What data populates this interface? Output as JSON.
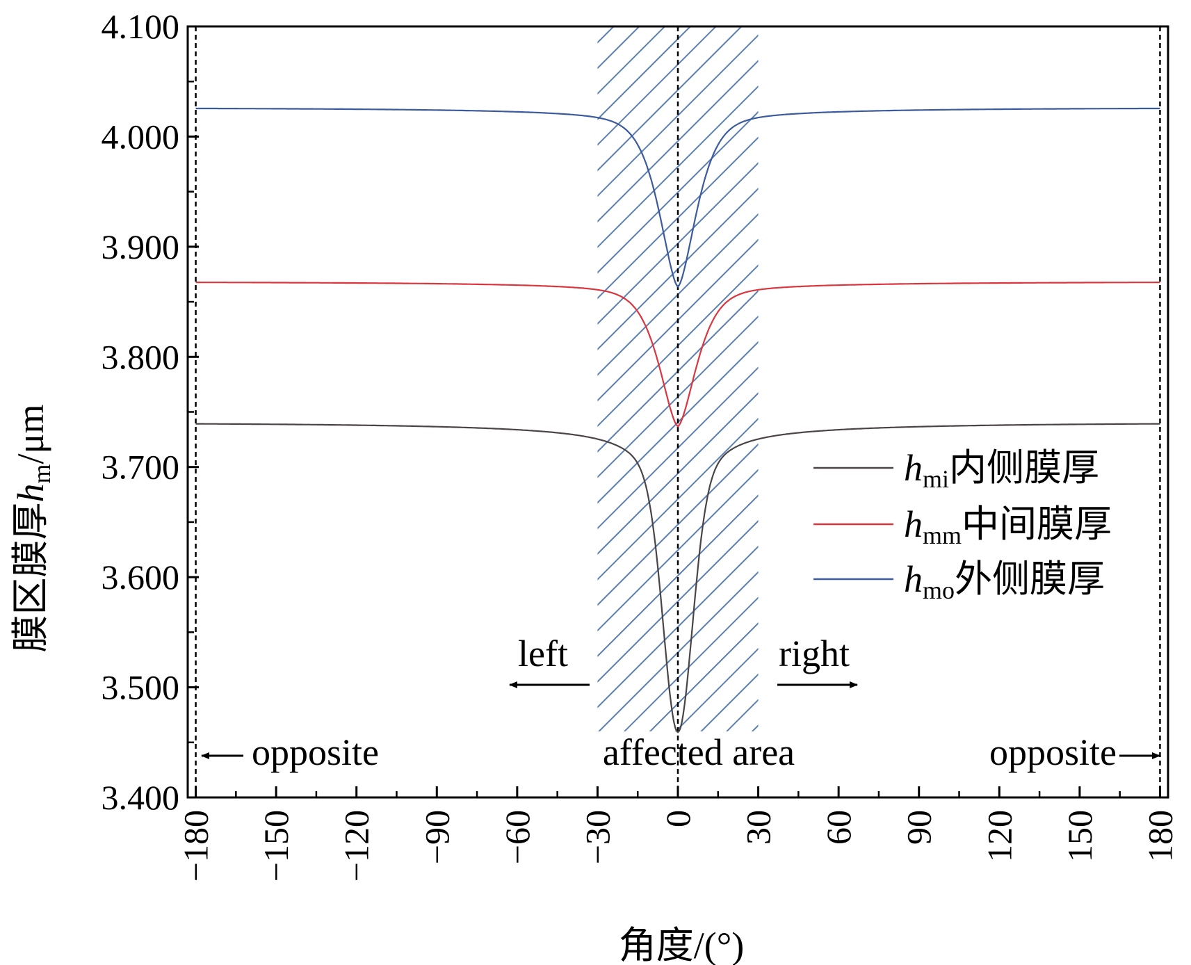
{
  "chart_data": {
    "type": "line",
    "xlabel": "角度/(°)",
    "ylabel": {
      "prefix": "膜区膜厚",
      "var": "h",
      "sub": "m",
      "unit": "/μm"
    },
    "xlim": [
      -183,
      183
    ],
    "ylim": [
      3.4,
      4.1
    ],
    "xticks": [
      -180,
      -150,
      -120,
      -90,
      -60,
      -30,
      0,
      30,
      60,
      90,
      120,
      150,
      180
    ],
    "xtick_labels": [
      "−180",
      "−150",
      "−120",
      "−90",
      "−60",
      "−30",
      "0",
      "30",
      "60",
      "90",
      "120",
      "150",
      "180"
    ],
    "yticks": [
      3.4,
      3.5,
      3.6,
      3.7,
      3.8,
      3.9,
      4.0,
      4.1
    ],
    "ytick_labels": [
      "3.400",
      "3.500",
      "3.600",
      "3.700",
      "3.800",
      "3.900",
      "4.000",
      "4.100"
    ],
    "affected_area": {
      "from": -30,
      "to": 30,
      "pattern": "hatched",
      "color": "#5b7fb3"
    },
    "reference_lines": [
      -180,
      0,
      180
    ],
    "series": [
      {
        "name": "h_mi 内侧膜厚",
        "var": "h",
        "sub": "mi",
        "label": "内侧膜厚",
        "color": "#4a4446",
        "base": 3.74,
        "min": 3.47,
        "min_at": 0
      },
      {
        "name": "h_mm 中间膜厚",
        "var": "h",
        "sub": "mm",
        "label": "中间膜厚",
        "color": "#d9363e",
        "base": 3.868,
        "min": 3.742,
        "min_at": 0
      },
      {
        "name": "h_mo 外侧膜厚",
        "var": "h",
        "sub": "mo",
        "label": "外侧膜厚",
        "color": "#3b5b9e",
        "base": 4.026,
        "min": 3.87,
        "min_at": 0
      }
    ],
    "annotations": {
      "left": "left",
      "right": "right",
      "affected": "affected area",
      "opposite_left": "opposite",
      "opposite_right": "opposite"
    },
    "legend_position": "right-middle"
  }
}
